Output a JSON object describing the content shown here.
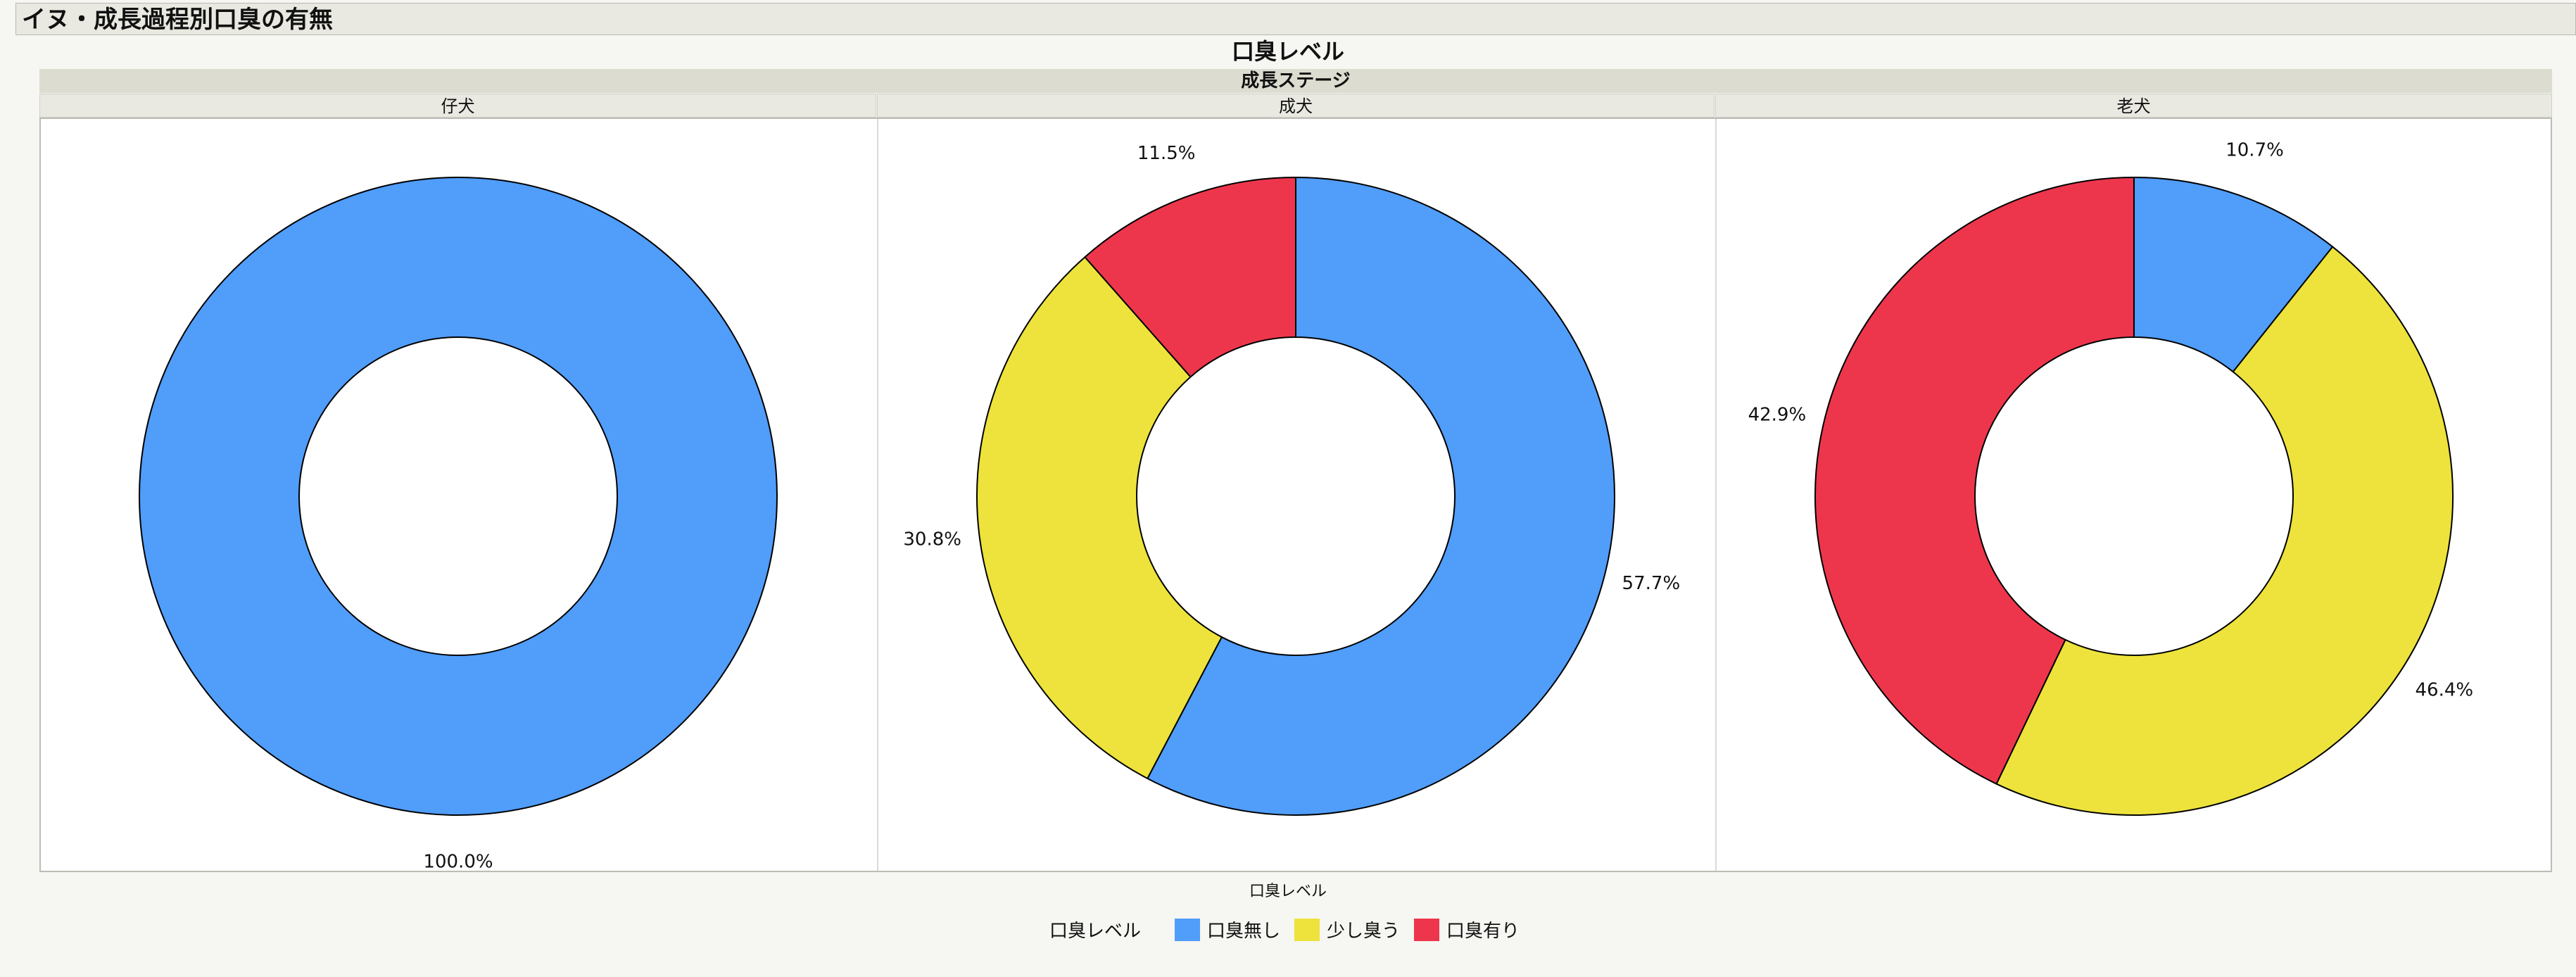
{
  "report": {
    "title": "イヌ・成長過程別口臭の有無"
  },
  "chart_data": {
    "type": "pie",
    "title": "口臭レベル",
    "group_label": "成長ステージ",
    "categories": [
      "口臭無し",
      "少し臭う",
      "口臭有り"
    ],
    "colors": {
      "口臭無し": "#509dfa",
      "少し臭う": "#ede33c",
      "口臭有り": "#ed364c"
    },
    "panels": [
      {
        "name": "仔犬",
        "values": [
          100.0,
          0,
          0
        ],
        "labels": [
          "100.0%",
          "",
          ""
        ]
      },
      {
        "name": "成犬",
        "values": [
          57.7,
          30.8,
          11.5
        ],
        "labels": [
          "57.7%",
          "30.8%",
          "11.5%"
        ]
      },
      {
        "name": "老犬",
        "values": [
          10.7,
          46.4,
          42.9
        ],
        "labels": [
          "10.7%",
          "46.4%",
          "42.9%"
        ]
      }
    ],
    "legend": {
      "axis_label": "口臭レベル",
      "title": "口臭レベル",
      "placement": "bottom"
    }
  }
}
